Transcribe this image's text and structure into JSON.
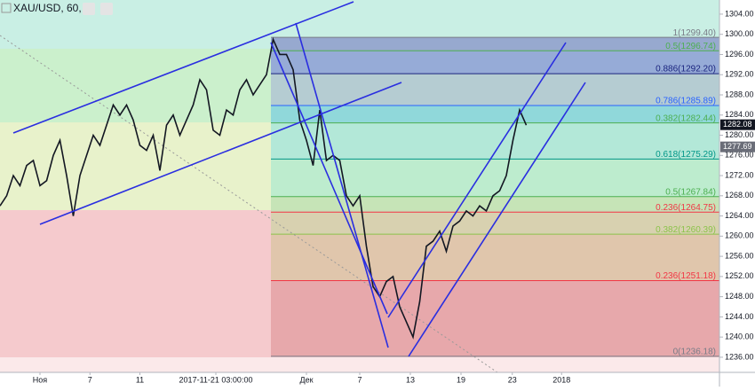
{
  "chart_data": {
    "type": "line",
    "title": "XAU/USD, 60,",
    "color": "#131722",
    "values": [
      1266,
      1268,
      1272,
      1270,
      1274,
      1275,
      1270,
      1271,
      1276,
      1279,
      1272,
      1264,
      1272,
      1276,
      1280,
      1278,
      1282,
      1286,
      1284,
      1286,
      1283,
      1278,
      1277,
      1280,
      1273,
      1282,
      1284,
      1280,
      1283,
      1286,
      1291,
      1289,
      1281,
      1280,
      1285,
      1284,
      1289,
      1291,
      1288,
      1290,
      1292,
      1299,
      1296,
      1296,
      1293,
      1283,
      1279,
      1274,
      1285,
      1275,
      1276,
      1275,
      1268,
      1266,
      1268,
      1258,
      1250,
      1248,
      1251,
      1252,
      1246,
      1243,
      1240,
      1247,
      1258,
      1259,
      1261,
      1257,
      1262,
      1263,
      1265,
      1264,
      1266,
      1265,
      1268,
      1269,
      1272,
      1279,
      1285,
      1282
    ],
    "xlim": [
      0,
      108
    ],
    "xticks": [
      {
        "value": 6,
        "label": "Ноя"
      },
      {
        "value": 13.5,
        "label": "7"
      },
      {
        "value": 21,
        "label": "11"
      },
      {
        "value": 32.4,
        "label": "2017-11-21 03:00:00"
      },
      {
        "value": 46,
        "label": "Дек"
      },
      {
        "value": 54,
        "label": "7"
      },
      {
        "value": 61.6,
        "label": "13"
      },
      {
        "value": 69.2,
        "label": "19"
      },
      {
        "value": 76.9,
        "label": "23"
      },
      {
        "value": 84.3,
        "label": "2018"
      }
    ],
    "ylim": [
      1233.0,
      1306.8
    ],
    "yticks": [
      {
        "value": 1236,
        "label": "1236.00"
      },
      {
        "value": 1240,
        "label": "1240.00"
      },
      {
        "value": 1244,
        "label": "1244.00"
      },
      {
        "value": 1248,
        "label": "1248.00"
      },
      {
        "value": 1252,
        "label": "1252.00"
      },
      {
        "value": 1256,
        "label": "1256.00"
      },
      {
        "value": 1260,
        "label": "1260.00"
      },
      {
        "value": 1264,
        "label": "1264.00"
      },
      {
        "value": 1268,
        "label": "1268.00"
      },
      {
        "value": 1272,
        "label": "1272.00"
      },
      {
        "value": 1276,
        "label": "1276.00"
      },
      {
        "value": 1280,
        "label": "1280.00"
      },
      {
        "value": 1284,
        "label": "1284.00"
      },
      {
        "value": 1288,
        "label": "1288.00"
      },
      {
        "value": 1292,
        "label": "1292.00"
      },
      {
        "value": 1296,
        "label": "1296.00"
      },
      {
        "value": 1300,
        "label": "1300.00"
      },
      {
        "value": 1304,
        "label": "1304.00"
      }
    ],
    "price_labels": [
      {
        "value": 1282.08,
        "label": "1282.08",
        "color": "#131722"
      },
      {
        "value": 1277.69,
        "label": "1277.69",
        "color": "#6a6d78"
      }
    ],
    "fib_levels": [
      {
        "value": 1299.4,
        "label": "1(1299.40)",
        "color": "#787b86",
        "zone": "#8e9ccb"
      },
      {
        "value": 1296.74,
        "label": "0.5(1296.74)",
        "color": "#4caf50",
        "zone": "#8d9fd8"
      },
      {
        "value": 1292.2,
        "label": "0.886(1292.20)",
        "color": "#1a237e",
        "zone": "#b2c6d2"
      },
      {
        "value": 1285.89,
        "label": "0.786(1285.89)",
        "color": "#2962ff",
        "zone": "#86d4dc"
      },
      {
        "value": 1282.44,
        "label": "0.382(1282.44)",
        "color": "#4caf50",
        "zone": "#a9e6da"
      },
      {
        "value": 1275.29,
        "label": "0.618(1275.29)",
        "color": "#009688",
        "zone": "#b5ebcf"
      },
      {
        "value": 1267.84,
        "label": "0.5(1267.84)",
        "color": "#4caf50",
        "zone": "#bfe2b4"
      },
      {
        "value": 1264.75,
        "label": "0.236(1264.75)",
        "color": "#f23645",
        "zone": "#d2d2aa"
      },
      {
        "value": 1260.39,
        "label": "0.382(1260.39)",
        "color": "#8bc34a",
        "zone": "#dcc6a6"
      },
      {
        "value": 1251.18,
        "label": "0.236(1251.18)",
        "color": "#f23645",
        "zone": "#e4a2a4"
      },
      {
        "value": 1236.18,
        "label": "0(1236.18)",
        "color": "#787b86",
        "zone": "#ffffff"
      }
    ]
  }
}
